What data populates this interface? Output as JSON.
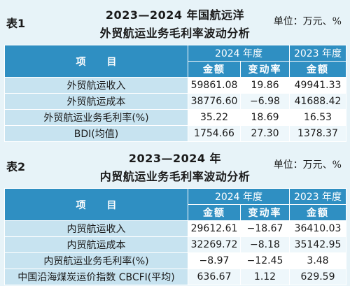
{
  "table1": {
    "number": "表1",
    "title_line1": "2023—2024 年国航远洋",
    "title_line2": "外贸航运业务毛利率波动分析",
    "unit": "单位：万元、%",
    "header": {
      "item": "项　目",
      "year2024": "2024 年度",
      "year2023": "2023 年度",
      "amount": "金额",
      "change_rate": "变动率"
    },
    "rows": [
      {
        "label": "外贸航运收入",
        "amt2024": "59861.08",
        "rate": "19.86",
        "amt2023": "49941.33"
      },
      {
        "label": "外贸航运成本",
        "amt2024": "38776.60",
        "rate": "−6.98",
        "amt2023": "41688.42"
      },
      {
        "label": "外贸航运业务毛利率(%)",
        "amt2024": "35.22",
        "rate": "18.69",
        "amt2023": "16.53"
      },
      {
        "label": "BDI(均值)",
        "amt2024": "1754.66",
        "rate": "27.30",
        "amt2023": "1378.37"
      }
    ]
  },
  "table2": {
    "number": "表2",
    "title_line1": "2023—2024 年",
    "title_line2": "内贸航运业务毛利率波动分析",
    "unit": "单位：万元、%",
    "header": {
      "item": "项　目",
      "year2024": "2024 年度",
      "year2023": "2023 年度",
      "amount": "金额",
      "change_rate": "变动率"
    },
    "rows": [
      {
        "label": "内贸航运收入",
        "amt2024": "29612.61",
        "rate": "−18.67",
        "amt2023": "36410.03"
      },
      {
        "label": "内贸航运成本",
        "amt2024": "32269.72",
        "rate": "−8.18",
        "amt2023": "35142.95"
      },
      {
        "label": "内贸航运业务毛利率(%)",
        "amt2024": "−8.97",
        "rate": "−12.45",
        "amt2023": "3.48"
      },
      {
        "label": "中国沿海煤炭运价指数 CBCFI(平均)",
        "amt2024": "636.67",
        "rate": "1.12",
        "amt2023": "629.59"
      }
    ]
  }
}
